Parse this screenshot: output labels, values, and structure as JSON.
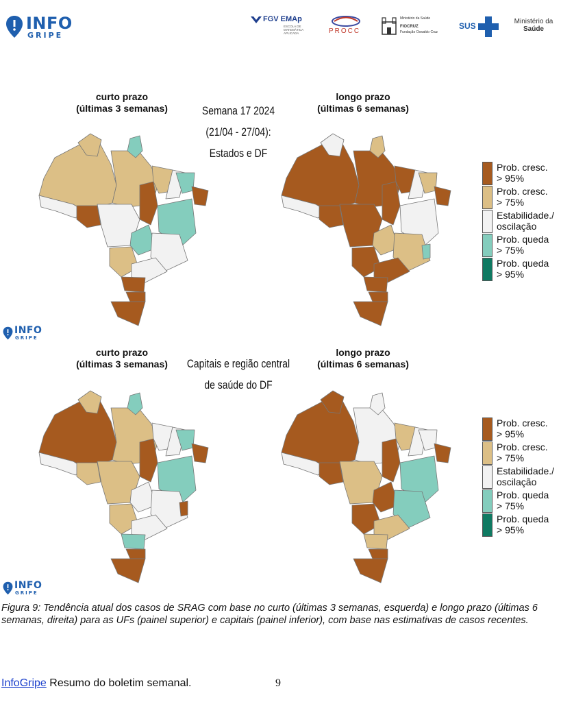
{
  "header": {
    "logo_main": "INFO",
    "logo_sub": "GRIPE",
    "sponsors": {
      "fgv": "FGV EMAp",
      "fgv_sub": "ESCOLA DE MATEMÁTICA APLICADA",
      "procc": "PROCC",
      "fiocruz_top": "Ministério da Saúde",
      "fiocruz": "FIOCRUZ",
      "fiocruz_sub": "Fundação Oswaldo Cruz",
      "sus": "SUS",
      "ministerio_line1": "Ministério da",
      "ministerio_line2": "Saúde"
    }
  },
  "top_panel": {
    "left_line1": "curto prazo",
    "left_line2": "(últimas 3 semanas)",
    "center_line1": "Semana 17 2024",
    "center_line2": "(21/04 - 27/04):",
    "center_line3": "Estados e DF",
    "right_line1": "longo prazo",
    "right_line2": "(últimas 6 semanas)"
  },
  "bottom_panel": {
    "left_line1": "curto prazo",
    "left_line2": "(últimas 3 semanas)",
    "center_line1": "Capitais e região central",
    "center_line2": "de saúde do DF",
    "right_line1": "longo prazo",
    "right_line2": "(últimas 6 semanas)"
  },
  "colors": {
    "strong_up": "#a65a1f",
    "up": "#dcbf86",
    "stable": "#f2f2f2",
    "down": "#84cdbd",
    "strong_down": "#0f7a62",
    "border": "#777777",
    "logo": "#1f5fae"
  },
  "legend": [
    {
      "line1": "Prob. cresc.",
      "line2": "> 95%",
      "color": "#a65a1f"
    },
    {
      "line1": "Prob. cresc.",
      "line2": "> 75%",
      "color": "#dcbf86"
    },
    {
      "line1": "Estabilidade./",
      "line2": "oscilação",
      "color": "#f2f2f2"
    },
    {
      "line1": "Prob. queda",
      "line2": "> 75%",
      "color": "#84cdbd"
    },
    {
      "line1": "Prob. queda",
      "line2": "> 95%",
      "color": "#0f7a62"
    }
  ],
  "caption": "Figura 9: Tendência atual dos casos de SRAG com base no curto (últimas 3 semanas, esquerda) e longo prazo (últimas 6 semanas, direita) para as UFs (painel superior) e capitais (painel inferior), com base nas estimativas de casos recentes.",
  "footer": {
    "link": "InfoGripe",
    "text": " Resumo do boletim semanal.",
    "page": "9"
  }
}
